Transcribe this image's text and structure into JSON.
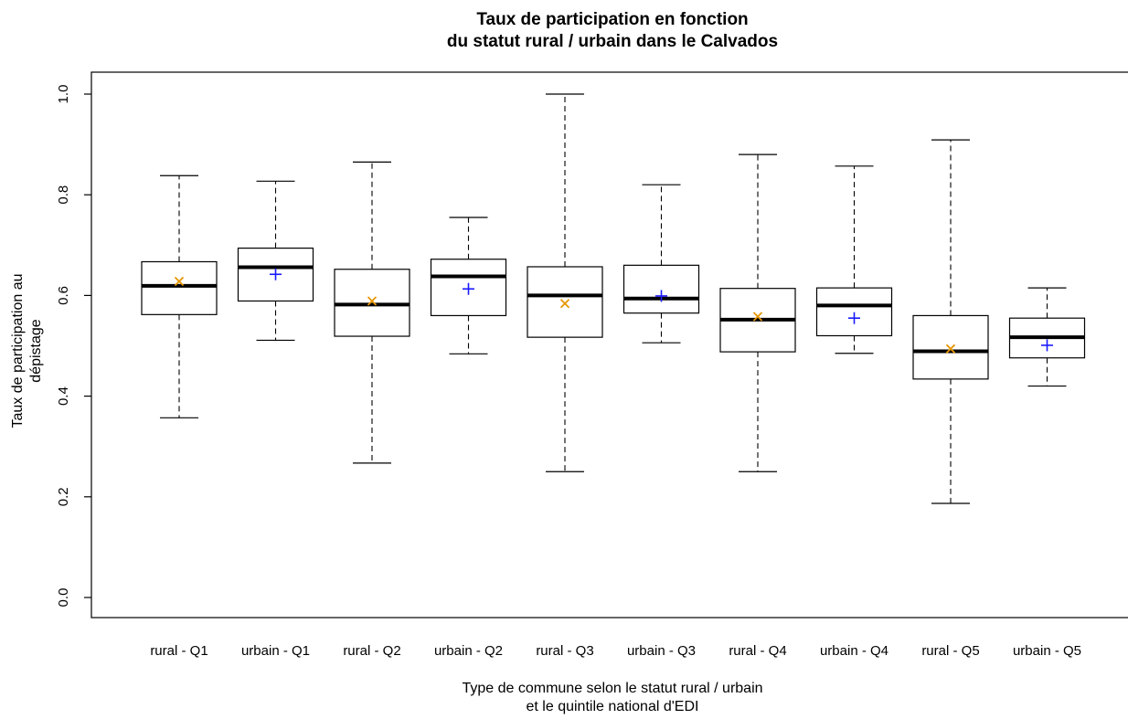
{
  "chart_data": {
    "type": "boxplot",
    "title_line1": "Taux de participation en fonction",
    "title_line2": "du statut rural / urbain dans le Calvados",
    "xlabel_line1": "Type de commune selon le statut rural / urbain",
    "xlabel_line2": "et le quintile national d'EDI",
    "ylabel": "Taux de participation au dépistage",
    "ylim": [
      0.0,
      1.0
    ],
    "yticks": [
      "0.0",
      "0.2",
      "0.4",
      "0.6",
      "0.8",
      "1.0"
    ],
    "grid": false,
    "colors": {
      "rural_mean": "#e69500",
      "urbain_mean": "#1a1aff"
    },
    "boxes": [
      {
        "label": "rural - Q1",
        "group": "rural",
        "min": 0.357,
        "q1": 0.562,
        "median": 0.619,
        "q3": 0.667,
        "max": 0.838,
        "mean": 0.628
      },
      {
        "label": "urbain - Q1",
        "group": "urbain",
        "min": 0.511,
        "q1": 0.589,
        "median": 0.656,
        "q3": 0.694,
        "max": 0.827,
        "mean": 0.642
      },
      {
        "label": "rural - Q2",
        "group": "rural",
        "min": 0.267,
        "q1": 0.519,
        "median": 0.582,
        "q3": 0.652,
        "max": 0.865,
        "mean": 0.589
      },
      {
        "label": "urbain - Q2",
        "group": "urbain",
        "min": 0.484,
        "q1": 0.56,
        "median": 0.638,
        "q3": 0.672,
        "max": 0.755,
        "mean": 0.613
      },
      {
        "label": "rural - Q3",
        "group": "rural",
        "min": 0.25,
        "q1": 0.517,
        "median": 0.6,
        "q3": 0.657,
        "max": 1.0,
        "mean": 0.584
      },
      {
        "label": "urbain - Q3",
        "group": "urbain",
        "min": 0.506,
        "q1": 0.565,
        "median": 0.594,
        "q3": 0.66,
        "max": 0.82,
        "mean": 0.599
      },
      {
        "label": "rural - Q4",
        "group": "rural",
        "min": 0.25,
        "q1": 0.488,
        "median": 0.552,
        "q3": 0.614,
        "max": 0.88,
        "mean": 0.558
      },
      {
        "label": "urbain - Q4",
        "group": "urbain",
        "min": 0.485,
        "q1": 0.52,
        "median": 0.58,
        "q3": 0.615,
        "max": 0.857,
        "mean": 0.555
      },
      {
        "label": "rural - Q5",
        "group": "rural",
        "min": 0.187,
        "q1": 0.434,
        "median": 0.489,
        "q3": 0.56,
        "max": 0.909,
        "mean": 0.494
      },
      {
        "label": "urbain - Q5",
        "group": "urbain",
        "min": 0.42,
        "q1": 0.476,
        "median": 0.517,
        "q3": 0.555,
        "max": 0.615,
        "mean": 0.501
      }
    ]
  }
}
